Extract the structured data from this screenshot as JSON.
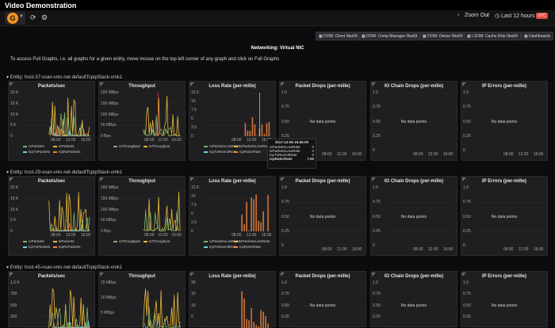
{
  "app": {
    "title": "Video Demonstration"
  },
  "navbar": {
    "logo_letter": "G",
    "zoom_out": "Zoom Out",
    "time_range": "Last 12 hours",
    "live_badge": "UTC"
  },
  "links": [
    "DOM: Client 0ba59",
    "DOM: Comp Manager 0ba59",
    "DOM: Owner 0ba59",
    "LSOM: Cache Disk 0ba59",
    "Dashboards"
  ],
  "dashboard": {
    "title": "Networking: Virtual NIC",
    "description": "To access Full Graphs, i.e. all graphs for a given entity, move mouse on the top left corner of any graph and click on Full Graphs"
  },
  "rows": [
    {
      "header": "Entity: host-37-vsan-vnic-net-defaultTcpipStack-vmk1",
      "panels": {
        "packets": {
          "title": "Packets/sec",
          "yticks": [
            "20 K",
            "15 K",
            "10 K",
            "5 K",
            "0"
          ],
          "xticks": [
            "08:00",
            "12:00",
            "16:00"
          ],
          "legend": [
            "rxPackets",
            "txPackets",
            "tcpTxPackets",
            "tcpRxPackets"
          ]
        },
        "throughput": {
          "title": "Throughput",
          "yticks": [
            "200 MBps",
            "150 MBps",
            "100 MBps",
            "50 MBps",
            "0 Bps"
          ],
          "xticks": [
            "08:00",
            "12:00",
            "16:00"
          ],
          "legend": [
            "rxThroughput",
            "txThroughput"
          ]
        },
        "lossrate": {
          "title": "Loss Rate (per-mille)",
          "yticks": [
            "12.5",
            "10",
            "7.5",
            "5",
            "2.5",
            "0"
          ],
          "xticks": [
            "08:00",
            "12:00",
            "16:00"
          ],
          "legend": [
            "rxPacketsLossRate",
            "txPacketsLossRate",
            "tcpTxRexmitRate",
            "tcpRxErrRate"
          ]
        },
        "drops": {
          "title": "Packet Drops (per-mille)",
          "yticks": [
            "1.0",
            "0.75",
            "0.50",
            "0.25",
            "0"
          ],
          "xticks": [
            "08:00",
            "12:00",
            "16:00"
          ],
          "nodata": "No data points"
        },
        "iochain": {
          "title": "IO Chain Drops (per-mille)",
          "yticks": [
            "1.0",
            "0.75",
            "0.50",
            "0.25",
            "0"
          ],
          "xticks": [
            "08:00",
            "12:00",
            "16:00"
          ],
          "nodata": "No data points"
        },
        "iperr": {
          "title": "IP Errors (per-mille)",
          "yticks": [
            "1.0",
            "0.75",
            "0.50",
            "0.25",
            "0"
          ],
          "xticks": [
            "08:00",
            "12:00",
            "16:00"
          ],
          "nodata": "No data points"
        }
      }
    },
    {
      "header": "Entity: host-29-vsan-vnic-net-defaultTcpipStack-vmk1",
      "panels": {
        "packets": {
          "title": "Packets/sec",
          "yticks": [
            "20 K",
            "15 K",
            "10 K",
            "5 K",
            "0"
          ],
          "xticks": [
            "08:00",
            "12:00",
            "16:00"
          ],
          "legend": [
            "rxPackets",
            "txPackets",
            "tcpTxPackets",
            "tcpRxPackets"
          ]
        },
        "throughput": {
          "title": "Throughput",
          "yticks": [
            "200 MBps",
            "150 MBps",
            "100 MBps",
            "50 MBps",
            "0 Bps"
          ],
          "xticks": [
            "08:00",
            "12:00",
            "16:00"
          ],
          "legend": [
            "rxThroughput",
            "txThroughput"
          ]
        },
        "lossrate": {
          "title": "Loss Rate (per-mille)",
          "yticks": [
            "12.5",
            "10",
            "7.5",
            "5",
            "2.5",
            "0"
          ],
          "xticks": [
            "08:00",
            "12:00",
            "16:00"
          ],
          "legend": [
            "rxPacketsLossRate",
            "txPacketsLossRate",
            "tcpTxRexmitRate",
            "tcpRxErrRate"
          ]
        },
        "drops": {
          "title": "Packet Drops (per-mille)",
          "yticks": [
            "1.0",
            "0.75",
            "0.50",
            "0.25",
            "0"
          ],
          "xticks": [
            "08:00",
            "12:00",
            "16:00"
          ],
          "nodata": "No data points"
        },
        "iochain": {
          "title": "IO Chain Drops (per-mille)",
          "yticks": [
            "1.0",
            "0.75",
            "0.50",
            "0.25",
            "0"
          ],
          "xticks": [
            "08:00",
            "12:00",
            "16:00"
          ],
          "nodata": "No data points"
        },
        "iperr": {
          "title": "IP Errors (per-mille)",
          "yticks": [
            "1.0",
            "0.75",
            "0.50",
            "0.25",
            "0"
          ],
          "xticks": [
            "08:00",
            "12:00",
            "16:00"
          ],
          "nodata": "No data points"
        }
      }
    },
    {
      "header": "Entity: host-45-vsan-vnic-net-defaultTcpipStack-vmk1",
      "panels": {
        "packets": {
          "title": "Packets/sec",
          "yticks": [
            "1.0 K",
            "750",
            "500",
            "250"
          ],
          "xticks": [],
          "legend": []
        },
        "throughput": {
          "title": "Throughput",
          "yticks": [
            "15 MBps",
            "10 MBps",
            "5 MBps"
          ],
          "xticks": [],
          "legend": []
        },
        "lossrate": {
          "title": "Loss Rate (per-mille)",
          "yticks": [
            "20",
            "15",
            "10",
            "5"
          ],
          "xticks": [],
          "legend": []
        },
        "drops": {
          "title": "Packet Drops (per-mille)",
          "yticks": [
            "1.0",
            "0.75",
            "0.50",
            "0.25"
          ],
          "xticks": [],
          "nodata": "No data points"
        },
        "iochain": {
          "title": "IO Chain Drops (per-mille)",
          "yticks": [
            "1.0",
            "0.75",
            "0.50",
            "0.25"
          ],
          "xticks": [],
          "nodata": "No data points"
        },
        "iperr": {
          "title": "IP Errors (per-mille)",
          "yticks": [
            "1.0",
            "0.75",
            "0.50",
            "0.25"
          ],
          "xticks": [],
          "nodata": "No data points"
        }
      }
    }
  ],
  "tooltip": {
    "time": "2017-12-05 15:59:00",
    "rows": [
      {
        "label": "rxPacketsLossRate",
        "value": "0"
      },
      {
        "label": "txPacketsLossRate",
        "value": "0"
      },
      {
        "label": "tcpTxRexmitRate",
        "value": "0"
      },
      {
        "label": "tcpRxErrRate",
        "value": "7.00"
      }
    ]
  },
  "colors": {
    "green": "#7eb26d",
    "yellow": "#eab839",
    "blue": "#6ed0e0",
    "orange": "#ef843c",
    "red": "#e24d42",
    "blue2": "#1f78c1"
  },
  "icons": [
    "grafana-logo-icon",
    "refresh-icon",
    "settings-icon",
    "chevron-left-icon",
    "chevron-right-icon",
    "clock-icon",
    "apps-icon"
  ]
}
